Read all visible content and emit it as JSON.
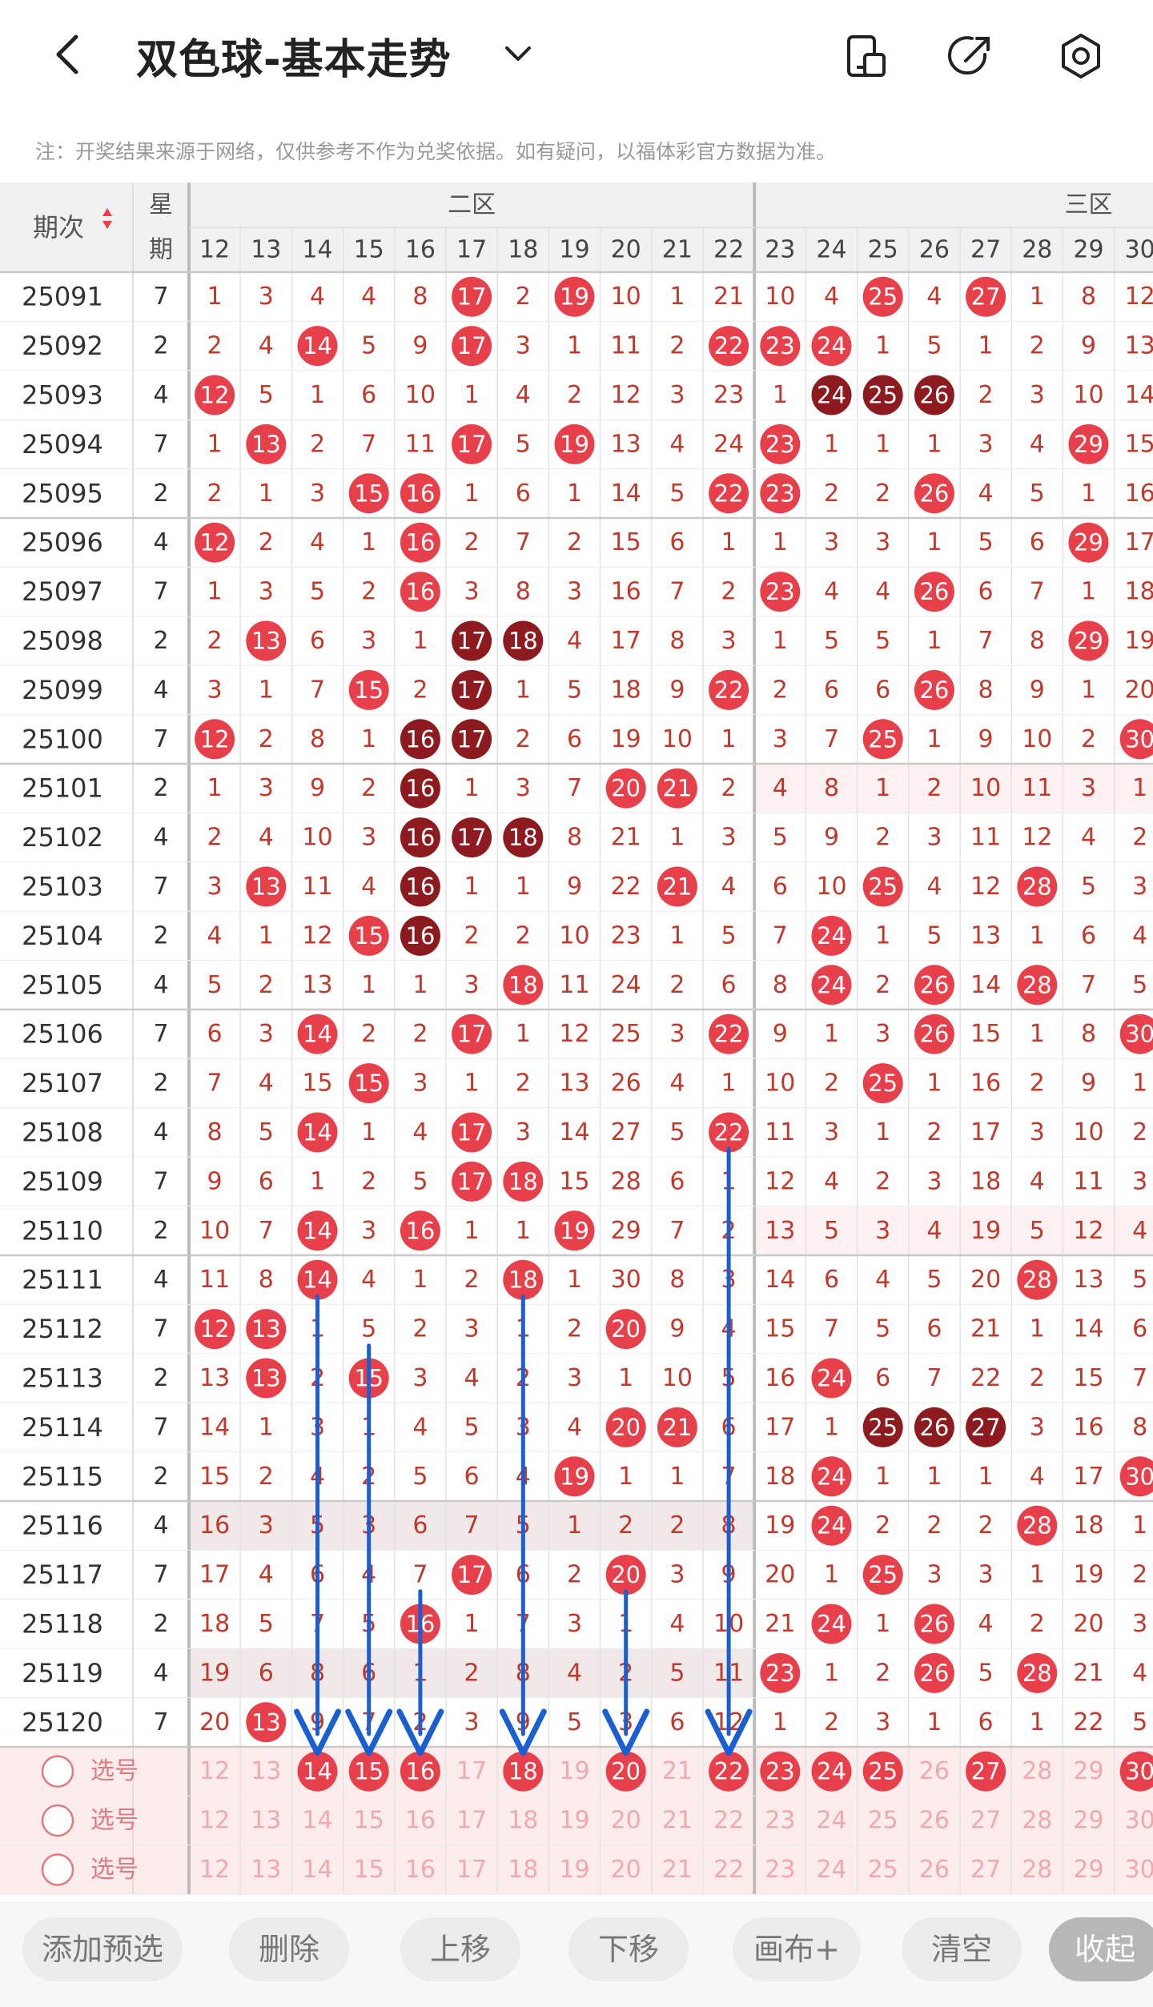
{
  "header": {
    "title": "双色球-基本走势",
    "icons": [
      "back-icon",
      "chevron-down-icon",
      "phone-screen-icon",
      "share-icon",
      "settings-icon"
    ]
  },
  "notice": "注：开奖结果来源于网络，仅供参考不作为兑奖依据。如有疑问，以福体彩官方数据为准。",
  "table": {
    "col_issue": "期次",
    "col_week": "星期",
    "zone2": "二区",
    "zone3": "三区",
    "number_columns": [
      "12",
      "13",
      "14",
      "15",
      "16",
      "17",
      "18",
      "19",
      "20",
      "21",
      "22",
      "23",
      "24",
      "25",
      "26",
      "27",
      "28",
      "29",
      "30"
    ],
    "rows": [
      {
        "issue": "25091",
        "week": "7",
        "cells": [
          "1",
          "3",
          "4",
          "4",
          "8",
          "17",
          "2",
          "19",
          "10",
          "1",
          "21",
          "10",
          "4",
          "25",
          "4",
          "27",
          "1",
          "8",
          "12"
        ]
      },
      {
        "issue": "25092",
        "week": "2",
        "cells": [
          "2",
          "4",
          "14",
          "5",
          "9",
          "17",
          "3",
          "1",
          "11",
          "2",
          "22",
          "23",
          "24",
          "1",
          "5",
          "1",
          "2",
          "9",
          "13"
        ]
      },
      {
        "issue": "25093",
        "week": "4",
        "cells": [
          "12",
          "5",
          "1",
          "6",
          "10",
          "1",
          "4",
          "2",
          "12",
          "3",
          "23",
          "1",
          "24",
          "25",
          "26",
          "2",
          "3",
          "10",
          "14"
        ]
      },
      {
        "issue": "25094",
        "week": "7",
        "cells": [
          "1",
          "13",
          "2",
          "7",
          "11",
          "17",
          "5",
          "19",
          "13",
          "4",
          "24",
          "23",
          "1",
          "1",
          "1",
          "3",
          "4",
          "29",
          "15"
        ]
      },
      {
        "issue": "25095",
        "week": "2",
        "cells": [
          "2",
          "1",
          "3",
          "15",
          "16",
          "1",
          "6",
          "1",
          "14",
          "5",
          "22",
          "23",
          "2",
          "2",
          "26",
          "4",
          "5",
          "1",
          "16"
        ]
      },
      {
        "issue": "25096",
        "week": "4",
        "cells": [
          "12",
          "2",
          "4",
          "1",
          "16",
          "2",
          "7",
          "2",
          "15",
          "6",
          "1",
          "1",
          "3",
          "3",
          "1",
          "5",
          "6",
          "29",
          "17"
        ]
      },
      {
        "issue": "25097",
        "week": "7",
        "cells": [
          "1",
          "3",
          "5",
          "2",
          "16",
          "3",
          "8",
          "3",
          "16",
          "7",
          "2",
          "23",
          "4",
          "4",
          "26",
          "6",
          "7",
          "1",
          "18"
        ]
      },
      {
        "issue": "25098",
        "week": "2",
        "cells": [
          "2",
          "13",
          "6",
          "3",
          "1",
          "17",
          "18",
          "4",
          "17",
          "8",
          "3",
          "1",
          "5",
          "5",
          "1",
          "7",
          "8",
          "29",
          "19"
        ]
      },
      {
        "issue": "25099",
        "week": "4",
        "cells": [
          "3",
          "1",
          "7",
          "15",
          "2",
          "17",
          "1",
          "5",
          "18",
          "9",
          "22",
          "2",
          "6",
          "6",
          "26",
          "8",
          "9",
          "1",
          "20"
        ]
      },
      {
        "issue": "25100",
        "week": "7",
        "cells": [
          "12",
          "2",
          "8",
          "1",
          "16",
          "17",
          "2",
          "6",
          "19",
          "10",
          "1",
          "3",
          "7",
          "25",
          "1",
          "9",
          "10",
          "2",
          "30"
        ]
      },
      {
        "issue": "25101",
        "week": "2",
        "cells": [
          "1",
          "3",
          "9",
          "2",
          "16",
          "1",
          "3",
          "7",
          "20",
          "21",
          "2",
          "4",
          "8",
          "1",
          "2",
          "10",
          "11",
          "3",
          "1"
        ]
      },
      {
        "issue": "25102",
        "week": "4",
        "cells": [
          "2",
          "4",
          "10",
          "3",
          "16",
          "17",
          "18",
          "8",
          "21",
          "1",
          "3",
          "5",
          "9",
          "2",
          "3",
          "11",
          "12",
          "4",
          "2"
        ]
      },
      {
        "issue": "25103",
        "week": "7",
        "cells": [
          "3",
          "13",
          "11",
          "4",
          "16",
          "1",
          "1",
          "9",
          "22",
          "21",
          "4",
          "6",
          "10",
          "25",
          "4",
          "12",
          "28",
          "5",
          "3"
        ]
      },
      {
        "issue": "25104",
        "week": "2",
        "cells": [
          "4",
          "1",
          "12",
          "15",
          "16",
          "2",
          "2",
          "10",
          "23",
          "1",
          "5",
          "7",
          "24",
          "1",
          "5",
          "13",
          "1",
          "6",
          "4"
        ]
      },
      {
        "issue": "25105",
        "week": "4",
        "cells": [
          "5",
          "2",
          "13",
          "1",
          "1",
          "3",
          "18",
          "11",
          "24",
          "2",
          "6",
          "8",
          "24",
          "2",
          "26",
          "14",
          "28",
          "7",
          "5"
        ]
      },
      {
        "issue": "25106",
        "week": "7",
        "cells": [
          "6",
          "3",
          "14",
          "2",
          "2",
          "17",
          "1",
          "12",
          "25",
          "3",
          "22",
          "9",
          "1",
          "3",
          "26",
          "15",
          "1",
          "8",
          "30"
        ]
      },
      {
        "issue": "25107",
        "week": "2",
        "cells": [
          "7",
          "4",
          "15",
          "15",
          "3",
          "1",
          "2",
          "13",
          "26",
          "4",
          "1",
          "10",
          "2",
          "25",
          "1",
          "16",
          "2",
          "9",
          "1"
        ]
      },
      {
        "issue": "25108",
        "week": "4",
        "cells": [
          "8",
          "5",
          "14",
          "1",
          "4",
          "17",
          "3",
          "14",
          "27",
          "5",
          "22",
          "11",
          "3",
          "1",
          "2",
          "17",
          "3",
          "10",
          "2"
        ]
      },
      {
        "issue": "25109",
        "week": "7",
        "cells": [
          "9",
          "6",
          "1",
          "2",
          "5",
          "17",
          "18",
          "15",
          "28",
          "6",
          "1",
          "12",
          "4",
          "2",
          "3",
          "18",
          "4",
          "11",
          "3"
        ]
      },
      {
        "issue": "25110",
        "week": "2",
        "cells": [
          "10",
          "7",
          "14",
          "3",
          "16",
          "1",
          "1",
          "19",
          "29",
          "7",
          "2",
          "13",
          "5",
          "3",
          "4",
          "19",
          "5",
          "12",
          "4"
        ]
      },
      {
        "issue": "25111",
        "week": "4",
        "cells": [
          "11",
          "8",
          "14",
          "4",
          "1",
          "2",
          "18",
          "1",
          "30",
          "8",
          "3",
          "14",
          "6",
          "4",
          "5",
          "20",
          "28",
          "13",
          "5"
        ]
      },
      {
        "issue": "25112",
        "week": "7",
        "cells": [
          "12",
          "13",
          "1",
          "5",
          "2",
          "3",
          "1",
          "2",
          "20",
          "9",
          "4",
          "15",
          "7",
          "5",
          "6",
          "21",
          "1",
          "14",
          "6"
        ]
      },
      {
        "issue": "25113",
        "week": "2",
        "cells": [
          "13",
          "13",
          "2",
          "15",
          "3",
          "4",
          "2",
          "3",
          "1",
          "10",
          "5",
          "16",
          "24",
          "6",
          "7",
          "22",
          "2",
          "15",
          "7"
        ]
      },
      {
        "issue": "25114",
        "week": "7",
        "cells": [
          "14",
          "1",
          "3",
          "1",
          "4",
          "5",
          "3",
          "4",
          "20",
          "21",
          "6",
          "17",
          "1",
          "25",
          "26",
          "27",
          "3",
          "16",
          "8"
        ]
      },
      {
        "issue": "25115",
        "week": "2",
        "cells": [
          "15",
          "2",
          "4",
          "2",
          "5",
          "6",
          "4",
          "19",
          "1",
          "1",
          "7",
          "18",
          "24",
          "1",
          "1",
          "1",
          "4",
          "17",
          "30"
        ]
      },
      {
        "issue": "25116",
        "week": "4",
        "cells": [
          "16",
          "3",
          "5",
          "3",
          "6",
          "7",
          "5",
          "1",
          "2",
          "2",
          "8",
          "19",
          "24",
          "2",
          "2",
          "2",
          "28",
          "18",
          "1"
        ]
      },
      {
        "issue": "25117",
        "week": "7",
        "cells": [
          "17",
          "4",
          "6",
          "4",
          "7",
          "17",
          "6",
          "2",
          "20",
          "3",
          "9",
          "20",
          "1",
          "25",
          "3",
          "3",
          "1",
          "19",
          "2"
        ]
      },
      {
        "issue": "25118",
        "week": "2",
        "cells": [
          "18",
          "5",
          "7",
          "5",
          "16",
          "1",
          "7",
          "3",
          "1",
          "4",
          "10",
          "21",
          "24",
          "1",
          "26",
          "4",
          "2",
          "20",
          "3"
        ]
      },
      {
        "issue": "25119",
        "week": "4",
        "cells": [
          "19",
          "6",
          "8",
          "6",
          "1",
          "2",
          "8",
          "4",
          "2",
          "5",
          "11",
          "23",
          "1",
          "2",
          "26",
          "5",
          "28",
          "21",
          "4"
        ]
      },
      {
        "issue": "25120",
        "week": "7",
        "cells": [
          "20",
          "13",
          "9",
          "7",
          "2",
          "3",
          "9",
          "5",
          "3",
          "6",
          "12",
          "1",
          "2",
          "3",
          "1",
          "6",
          "1",
          "22",
          "5"
        ]
      }
    ],
    "pick_rows": [
      {
        "label": "选号",
        "selected": [
          "14",
          "15",
          "16",
          "18",
          "20",
          "22",
          "23",
          "24",
          "25",
          "27",
          "30"
        ]
      },
      {
        "label": "选号",
        "selected": []
      },
      {
        "label": "选号",
        "selected": []
      }
    ]
  },
  "toolbar": {
    "buttons": [
      "添加预选",
      "删除",
      "上移",
      "下移",
      "画布+",
      "清空",
      "收起"
    ]
  },
  "colors": {
    "red": "#e8404a",
    "dark_red": "#8c1a1e",
    "arrow": "#1a5fd1",
    "text_red": "#c0392b",
    "pick_bg": "#fdecec"
  }
}
